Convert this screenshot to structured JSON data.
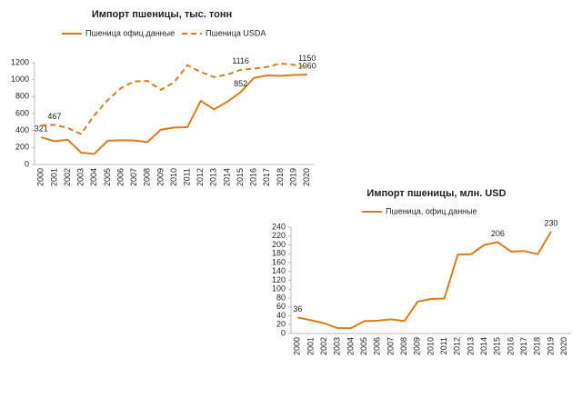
{
  "chart_data": [
    {
      "type": "line",
      "title": "Импорт пшеницы, тыс. тонн",
      "categories": [
        "2000",
        "2001",
        "2002",
        "2003",
        "2004",
        "2005",
        "2006",
        "2007",
        "2008",
        "2009",
        "2010",
        "2011",
        "2012",
        "2013",
        "2014",
        "2015",
        "2016",
        "2017",
        "2018",
        "2019",
        "2020"
      ],
      "series": [
        {
          "name": "Пшеница офиц.данные",
          "color": "#e07b1a",
          "line_style": "solid",
          "values": [
            321,
            275,
            290,
            140,
            125,
            280,
            285,
            283,
            265,
            410,
            435,
            440,
            750,
            650,
            740,
            852,
            1020,
            1050,
            1045,
            1055,
            1060
          ],
          "value_labels": [
            "321",
            null,
            null,
            null,
            null,
            null,
            null,
            null,
            null,
            null,
            null,
            null,
            null,
            null,
            null,
            "852",
            null,
            null,
            null,
            null,
            "1060"
          ]
        },
        {
          "name": "Пшеница USDA",
          "color": "#e07b1a",
          "line_style": "dashed",
          "values": [
            460,
            467,
            430,
            360,
            580,
            760,
            900,
            980,
            985,
            880,
            970,
            1170,
            1090,
            1030,
            1060,
            1116,
            1130,
            1150,
            1190,
            1175,
            1150
          ],
          "value_labels": [
            null,
            "467",
            null,
            null,
            null,
            null,
            null,
            null,
            null,
            null,
            null,
            null,
            null,
            null,
            null,
            "1116",
            null,
            null,
            null,
            null,
            "1150"
          ]
        }
      ],
      "ylim": [
        0,
        1200
      ],
      "yticks": [
        0,
        200,
        400,
        600,
        800,
        1000,
        1200
      ]
    },
    {
      "type": "line",
      "title": "Импорт пшеницы, млн. USD",
      "categories": [
        "2000",
        "2001",
        "2002",
        "2003",
        "2004",
        "2005",
        "2006",
        "2007",
        "2008",
        "2009",
        "2010",
        "2011",
        "2012",
        "2013",
        "2014",
        "2015",
        "2016",
        "2017",
        "2018",
        "2019",
        "2020"
      ],
      "series": [
        {
          "name": "Пшеница, офиц.данные",
          "color": "#e07b1a",
          "line_style": "solid",
          "values": [
            36,
            30,
            23,
            12,
            12,
            28,
            29,
            32,
            28,
            72,
            78,
            79,
            178,
            179,
            200,
            206,
            185,
            186,
            179,
            230,
            null
          ],
          "value_labels": [
            "36",
            null,
            null,
            null,
            null,
            null,
            null,
            null,
            null,
            null,
            null,
            null,
            null,
            null,
            null,
            "206",
            null,
            null,
            null,
            "230",
            null
          ]
        }
      ],
      "ylim": [
        0,
        240
      ],
      "yticks": [
        0,
        20,
        40,
        60,
        80,
        100,
        120,
        140,
        160,
        180,
        200,
        220,
        240
      ]
    }
  ]
}
